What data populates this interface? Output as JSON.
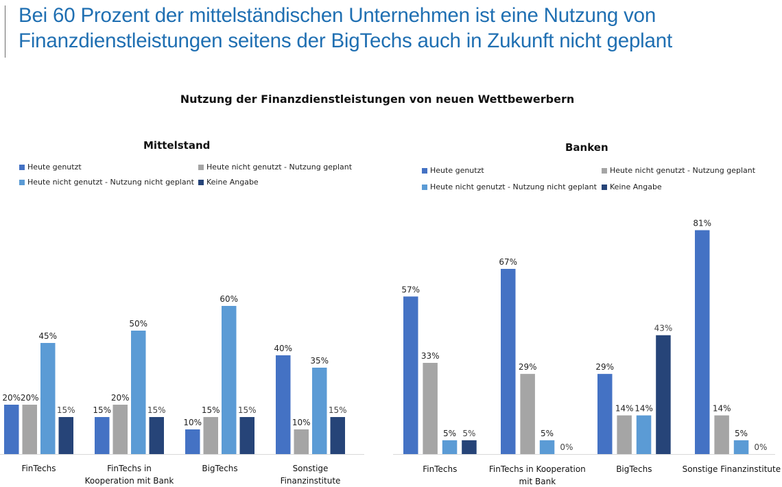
{
  "headline": {
    "line1": "Bei 60 Prozent der mittelständischen Unternehmen ist eine Nutzung von",
    "line2": "Finanzdienstleistungen seitens der BigTechs auch in Zukunft nicht geplant"
  },
  "chart_data": [
    {
      "type": "bar",
      "title": "Nutzung der Finanzdienstleistungen von neuen Wettbewerbern",
      "subtitle": "Mittelstand",
      "categories": [
        "FinTechs",
        "FinTechs in\nKooperation mit Bank",
        "BigTechs",
        "Sonstige\nFinanzinstitute"
      ],
      "series": [
        {
          "name": "Heute genutzt",
          "color": "#4472c4",
          "values": [
            20,
            15,
            10,
            40
          ]
        },
        {
          "name": "Heute nicht genutzt - Nutzung geplant",
          "color": "#a5a5a5",
          "values": [
            20,
            20,
            15,
            10
          ]
        },
        {
          "name": "Heute nicht genutzt - Nutzung nicht geplant",
          "color": "#5b9bd5",
          "values": [
            45,
            50,
            60,
            35
          ]
        },
        {
          "name": "Keine Angabe",
          "color": "#264478",
          "values": [
            15,
            15,
            15,
            15
          ]
        }
      ],
      "value_format": "percent",
      "legend_position": "top",
      "grid": false
    },
    {
      "type": "bar",
      "title": "Nutzung der Finanzdienstleistungen von neuen Wettbewerbern",
      "subtitle": "Banken",
      "categories": [
        "FinTechs",
        "FinTechs in Kooperation\nmit Bank",
        "BigTechs",
        "Sonstige Finanzinstitute"
      ],
      "series": [
        {
          "name": "Heute genutzt",
          "color": "#4472c4",
          "values": [
            57,
            67,
            29,
            81
          ]
        },
        {
          "name": "Heute nicht genutzt - Nutzung geplant",
          "color": "#a5a5a5",
          "values": [
            33,
            29,
            14,
            14
          ]
        },
        {
          "name": "Heute nicht genutzt - Nutzung nicht geplant",
          "color": "#5b9bd5",
          "values": [
            5,
            5,
            14,
            5
          ]
        },
        {
          "name": "Keine Angabe",
          "color": "#264478",
          "values": [
            5,
            0,
            43,
            0
          ]
        }
      ],
      "value_format": "percent",
      "legend_position": "top",
      "grid": false
    }
  ]
}
